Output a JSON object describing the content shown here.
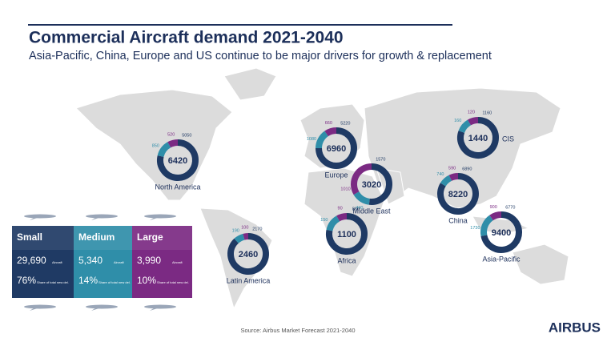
{
  "header": {
    "title": "Commercial Aircraft demand 2021-2040",
    "subtitle": "Asia-Pacific, China, Europe and US continue to be major drivers for growth & replacement"
  },
  "summary": [
    {
      "category": "Small",
      "color": "#1f3a64",
      "count": "29,690",
      "count_unit": "Aircraft",
      "share": "76%",
      "share_note": "Share of total new del."
    },
    {
      "category": "Medium",
      "color": "#2f8ea9",
      "count": "5,340",
      "count_unit": "Aircraft",
      "share": "14%",
      "share_note": "Share of total new del."
    },
    {
      "category": "Large",
      "color": "#7b2a83",
      "count": "3,990",
      "count_unit": "Aircraft",
      "share": "10%",
      "share_note": "Share of total new del."
    }
  ],
  "chart_data": [
    {
      "type": "donut",
      "title": "North America",
      "total": 6420,
      "values": [
        5050,
        850,
        520
      ]
    },
    {
      "type": "donut",
      "title": "Europe",
      "total": 6960,
      "values": [
        5220,
        1080,
        660
      ]
    },
    {
      "type": "donut",
      "title": "CIS",
      "total": 1440,
      "values": [
        1160,
        160,
        120
      ]
    },
    {
      "type": "donut",
      "title": "Middle East",
      "total": 3020,
      "values": [
        1570,
        440,
        1010
      ]
    },
    {
      "type": "donut",
      "title": "China",
      "total": 8220,
      "values": [
        6890,
        740,
        590
      ]
    },
    {
      "type": "donut",
      "title": "Asia-Pacific",
      "total": 9400,
      "values": [
        6770,
        1730,
        900
      ]
    },
    {
      "type": "donut",
      "title": "Africa",
      "total": 1100,
      "values": [
        860,
        150,
        90
      ]
    },
    {
      "type": "donut",
      "title": "Latin America",
      "total": 2460,
      "values": [
        2170,
        190,
        100
      ]
    }
  ],
  "source": "Source: Airbus Market Forecast 2021-2040",
  "logo": "AIRBUS"
}
